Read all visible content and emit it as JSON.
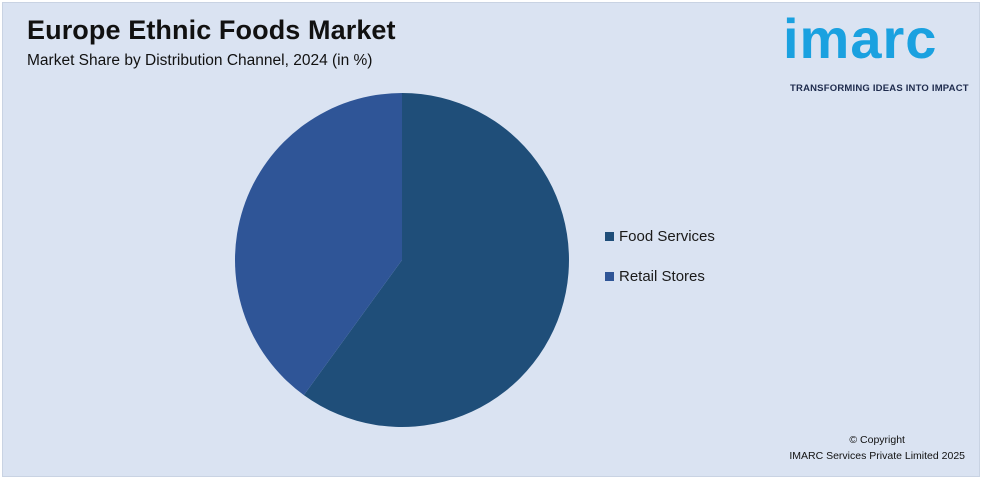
{
  "header": {
    "title": "Europe Ethnic Foods Market",
    "subtitle": "Market Share by Distribution Channel, 2024 (in %)"
  },
  "logo": {
    "word": "imarc",
    "tagline": "TRANSFORMING IDEAS INTO IMPACT",
    "color": "#1aa1e0"
  },
  "chart_data": {
    "type": "pie",
    "title": "Europe Ethnic Foods Market",
    "subtitle": "Market Share by Distribution Channel, 2024 (in %)",
    "legend_position": "right",
    "categories": [
      "Food Services",
      "Retail Stores"
    ],
    "values": [
      60,
      40
    ],
    "colors": [
      "#1f4e79",
      "#2f5597"
    ]
  },
  "footer": {
    "copyright_line1": "© Copyright",
    "copyright_line2": "IMARC Services Private Limited 2025"
  }
}
